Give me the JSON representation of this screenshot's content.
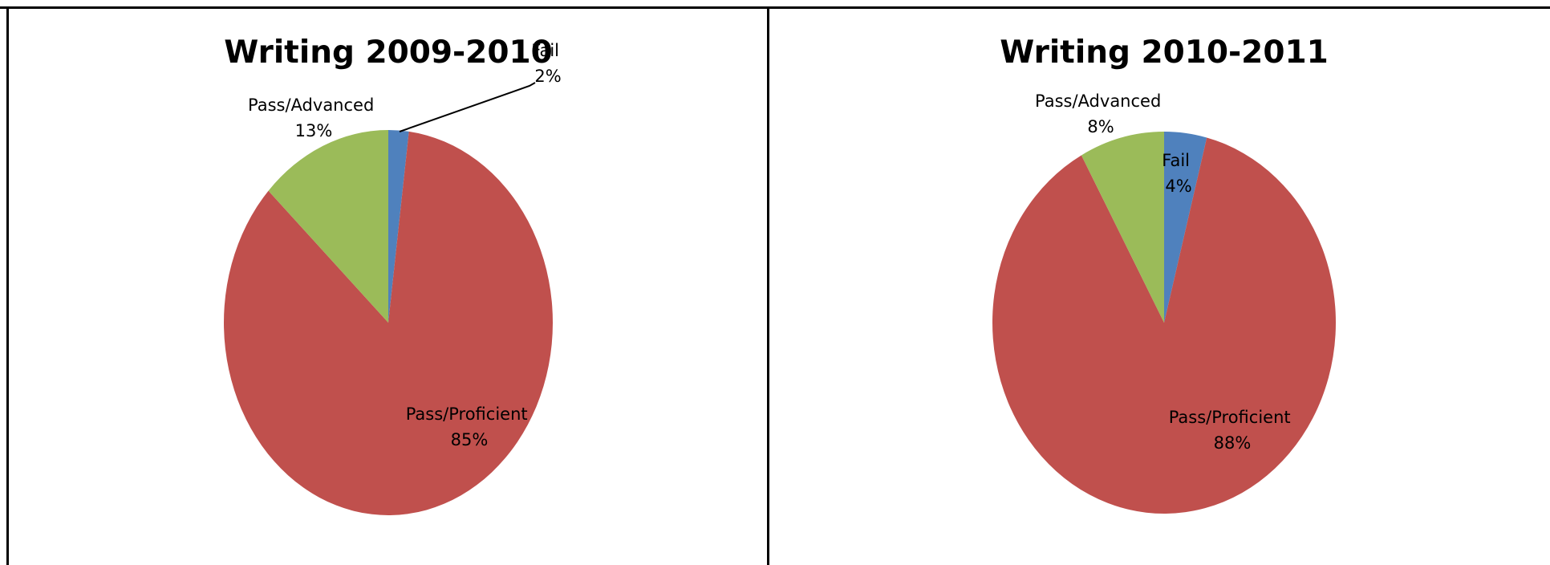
{
  "chart_data": [
    {
      "type": "pie",
      "title": "Writing 2009-2010",
      "slices": [
        {
          "label": "Fail",
          "value": 2,
          "value_text": "2%",
          "color": "#4F81BD"
        },
        {
          "label": "Pass/Proficient",
          "value": 85,
          "value_text": "85%",
          "color": "#C0504D"
        },
        {
          "label": "Pass/Advanced",
          "value": 13,
          "value_text": "13%",
          "color": "#9BBB59"
        }
      ]
    },
    {
      "type": "pie",
      "title": "Writing 2010-2011",
      "slices": [
        {
          "label": "Fail",
          "value": 4,
          "value_text": "4%",
          "color": "#4F81BD"
        },
        {
          "label": "Pass/Proficient",
          "value": 88,
          "value_text": "88%",
          "color": "#C0504D"
        },
        {
          "label": "Pass/Advanced",
          "value": 8,
          "value_text": "8%",
          "color": "#9BBB59"
        }
      ]
    }
  ]
}
